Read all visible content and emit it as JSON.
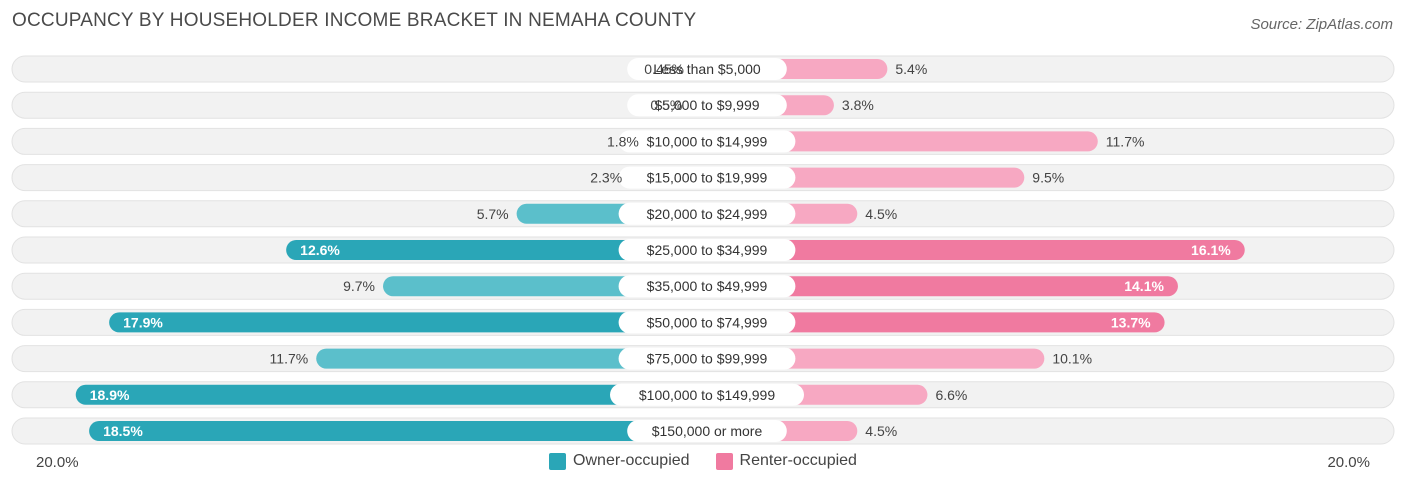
{
  "title": "OCCUPANCY BY HOUSEHOLDER INCOME BRACKET IN NEMAHA COUNTY",
  "source": "Source: ZipAtlas.com",
  "colors": {
    "owner": "#5bbfcb",
    "owner_dark": "#2aa6b7",
    "renter": "#f7a8c2",
    "renter_dark": "#f07aa0",
    "track": "#efefef"
  },
  "chart_data": {
    "type": "bar",
    "orientation": "horizontal-diverging",
    "title": "OCCUPANCY BY HOUSEHOLDER INCOME BRACKET IN NEMAHA COUNTY",
    "categories": [
      "Less than $5,000",
      "$5,000 to $9,999",
      "$10,000 to $14,999",
      "$15,000 to $19,999",
      "$20,000 to $24,999",
      "$25,000 to $34,999",
      "$35,000 to $49,999",
      "$50,000 to $74,999",
      "$75,000 to $99,999",
      "$100,000 to $149,999",
      "$150,000 or more"
    ],
    "series": [
      {
        "name": "Owner-occupied",
        "values": [
          0.45,
          0.5,
          1.8,
          2.3,
          5.7,
          12.6,
          9.7,
          17.9,
          11.7,
          18.9,
          18.5
        ],
        "labels": [
          "0.45%",
          "0.5%",
          "1.8%",
          "2.3%",
          "5.7%",
          "12.6%",
          "9.7%",
          "17.9%",
          "11.7%",
          "18.9%",
          "18.5%"
        ]
      },
      {
        "name": "Renter-occupied",
        "values": [
          5.4,
          3.8,
          11.7,
          9.5,
          4.5,
          16.1,
          14.1,
          13.7,
          10.1,
          6.6,
          4.5
        ],
        "labels": [
          "5.4%",
          "3.8%",
          "11.7%",
          "9.5%",
          "4.5%",
          "16.1%",
          "14.1%",
          "13.7%",
          "10.1%",
          "6.6%",
          "4.5%"
        ]
      }
    ],
    "xlim": [
      -20,
      20
    ],
    "axis_left_label": "20.0%",
    "axis_right_label": "20.0%",
    "legend_position": "bottom-center"
  }
}
